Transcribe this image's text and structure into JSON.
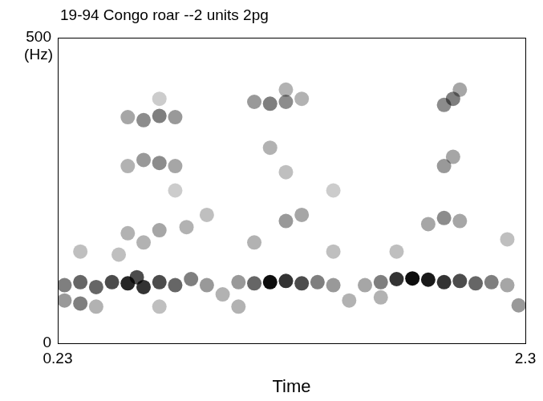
{
  "chart_data": {
    "type": "scatter",
    "title": "19-94 Congo roar --2 units 2pg",
    "x_label": "Time",
    "y_label": "(Hz)",
    "xlim": [
      0.23,
      2.3
    ],
    "xticks": [
      0.23,
      2.3
    ],
    "ylim": [
      0,
      500
    ],
    "yticks": [
      0,
      500
    ],
    "grid": false,
    "color": "#000000",
    "marker": "circle",
    "x": [
      0.26,
      0.26,
      0.33,
      0.33,
      0.4,
      0.4,
      0.47,
      0.54,
      0.58,
      0.61,
      0.68,
      0.75,
      0.82,
      0.89,
      0.96,
      1.03,
      1.1,
      1.17,
      1.24,
      1.31,
      1.38,
      1.45,
      1.52,
      1.59,
      1.66,
      1.73,
      1.8,
      1.87,
      1.94,
      2.01,
      2.08,
      2.15,
      2.22,
      2.27,
      1.03,
      1.66,
      0.68,
      0.33,
      0.5,
      0.61,
      0.54,
      0.68,
      0.8,
      0.89,
      1.24,
      1.31,
      1.1,
      1.45,
      1.87,
      1.94,
      2.01,
      2.22,
      1.73,
      0.54,
      0.61,
      0.68,
      0.75,
      1.17,
      1.24,
      1.94,
      1.98,
      0.75,
      1.45,
      0.54,
      0.61,
      0.68,
      0.75,
      1.1,
      1.17,
      1.24,
      1.31,
      1.24,
      1.94,
      1.98,
      2.01,
      0.68
    ],
    "values": [
      95,
      70,
      100,
      65,
      92,
      60,
      100,
      98,
      108,
      92,
      100,
      95,
      105,
      95,
      80,
      100,
      98,
      100,
      102,
      98,
      100,
      95,
      70,
      95,
      100,
      105,
      106,
      104,
      100,
      102,
      98,
      100,
      95,
      62,
      60,
      75,
      60,
      150,
      145,
      165,
      180,
      185,
      190,
      210,
      200,
      210,
      165,
      150,
      195,
      205,
      200,
      170,
      150,
      290,
      300,
      295,
      290,
      320,
      280,
      290,
      305,
      250,
      250,
      370,
      365,
      372,
      370,
      395,
      392,
      395,
      400,
      415,
      390,
      400,
      415,
      400
    ],
    "intensity": [
      0.5,
      0.4,
      0.6,
      0.5,
      0.6,
      0.3,
      0.7,
      0.85,
      0.7,
      0.8,
      0.7,
      0.6,
      0.5,
      0.4,
      0.3,
      0.4,
      0.6,
      0.95,
      0.8,
      0.7,
      0.5,
      0.4,
      0.3,
      0.35,
      0.5,
      0.8,
      0.95,
      0.9,
      0.8,
      0.7,
      0.6,
      0.5,
      0.35,
      0.4,
      0.3,
      0.3,
      0.25,
      0.25,
      0.25,
      0.3,
      0.3,
      0.35,
      0.3,
      0.25,
      0.4,
      0.35,
      0.3,
      0.25,
      0.35,
      0.45,
      0.35,
      0.25,
      0.25,
      0.3,
      0.4,
      0.45,
      0.35,
      0.3,
      0.25,
      0.4,
      0.35,
      0.2,
      0.2,
      0.35,
      0.45,
      0.5,
      0.4,
      0.4,
      0.5,
      0.45,
      0.3,
      0.3,
      0.45,
      0.5,
      0.35,
      0.2
    ]
  }
}
